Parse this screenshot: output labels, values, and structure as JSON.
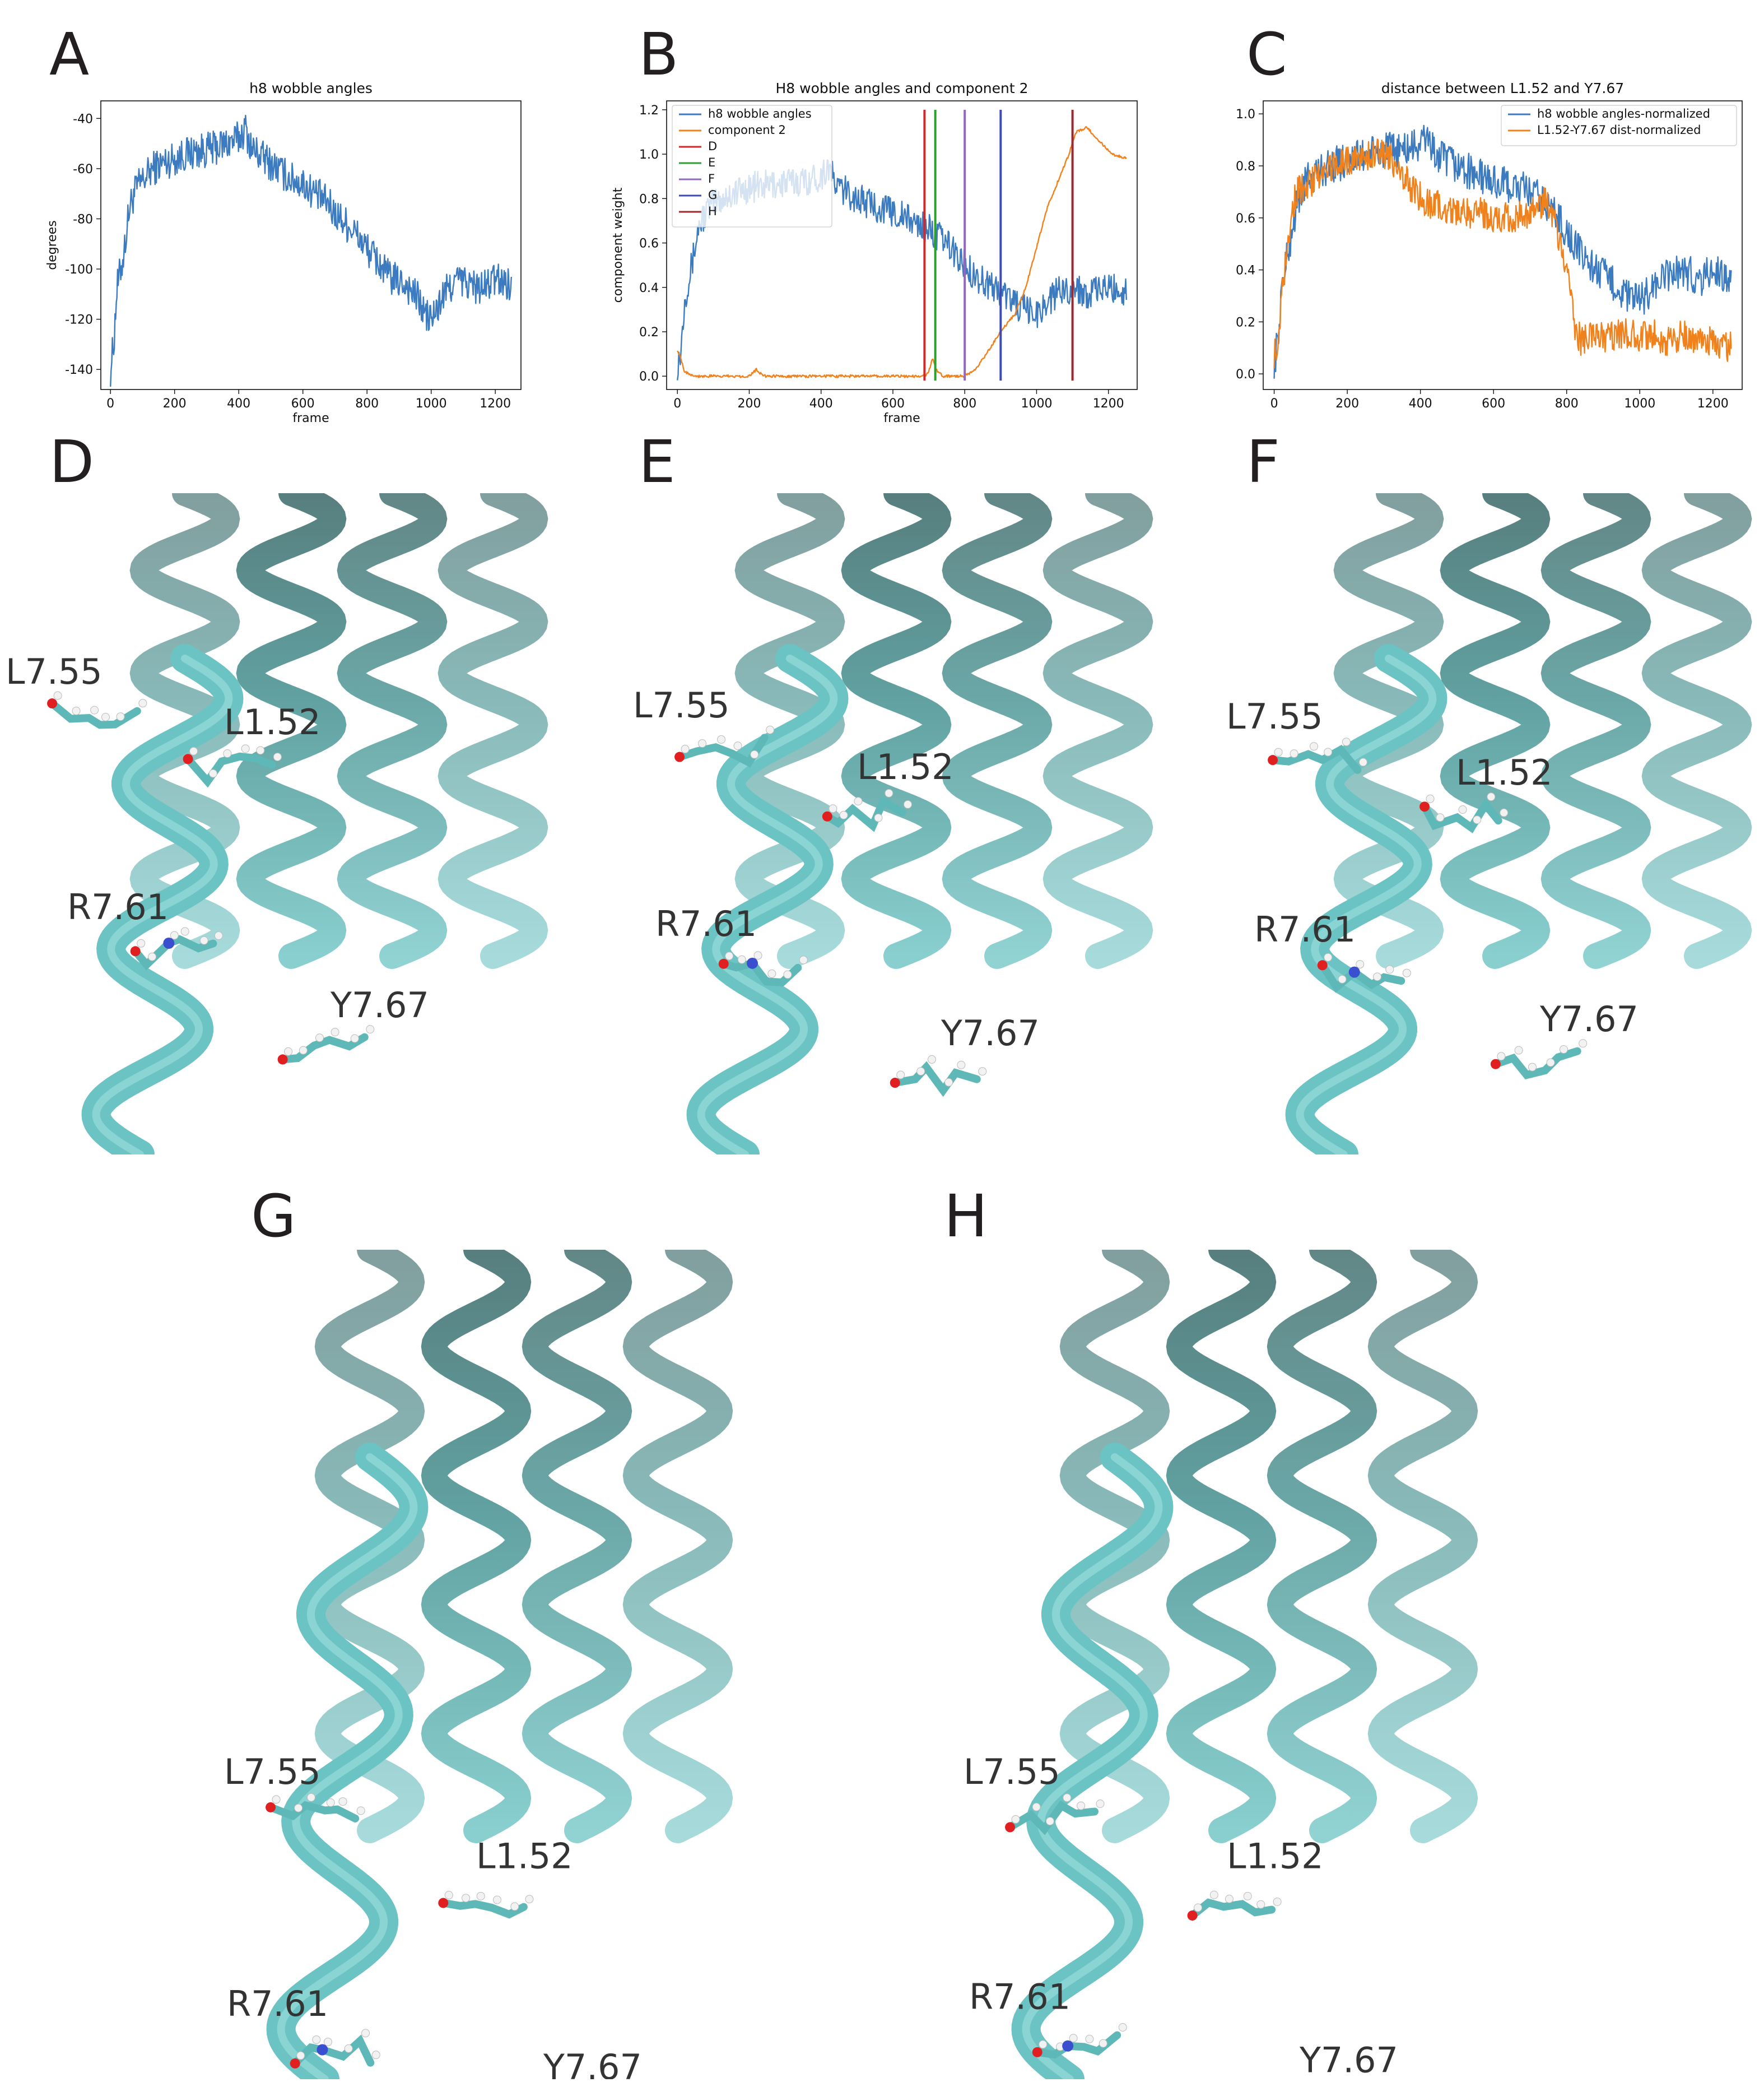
{
  "panel_labels": [
    "A",
    "B",
    "C",
    "D",
    "E",
    "F",
    "G",
    "H"
  ],
  "chart_data": [
    {
      "type": "line",
      "title": "h8 wobble angles",
      "xlabel": "frame",
      "ylabel": "degrees",
      "xlim": [
        -30,
        1280
      ],
      "ylim": [
        -148,
        -33
      ],
      "xticks": [
        0,
        200,
        400,
        600,
        800,
        1000,
        1200
      ],
      "yticks": [
        -140,
        -120,
        -100,
        -80,
        -60,
        -40
      ],
      "grid": false,
      "series": [
        {
          "values": [
            [
              0,
              -140
            ],
            [
              10,
              -130
            ],
            [
              20,
              -108
            ],
            [
              40,
              -95
            ],
            [
              60,
              -75
            ],
            [
              80,
              -68
            ],
            [
              100,
              -65
            ],
            [
              130,
              -60
            ],
            [
              160,
              -58
            ],
            [
              200,
              -56
            ],
            [
              240,
              -54
            ],
            [
              280,
              -53
            ],
            [
              320,
              -52
            ],
            [
              360,
              -50
            ],
            [
              400,
              -48
            ],
            [
              420,
              -44
            ],
            [
              440,
              -52
            ],
            [
              480,
              -56
            ],
            [
              520,
              -60
            ],
            [
              560,
              -64
            ],
            [
              600,
              -66
            ],
            [
              640,
              -70
            ],
            [
              680,
              -74
            ],
            [
              700,
              -78
            ],
            [
              720,
              -80
            ],
            [
              760,
              -85
            ],
            [
              800,
              -92
            ],
            [
              840,
              -98
            ],
            [
              860,
              -102
            ],
            [
              880,
              -104
            ],
            [
              920,
              -106
            ],
            [
              960,
              -112
            ],
            [
              980,
              -118
            ],
            [
              1000,
              -120
            ],
            [
              1020,
              -116
            ],
            [
              1040,
              -110
            ],
            [
              1080,
              -104
            ],
            [
              1120,
              -106
            ],
            [
              1160,
              -108
            ],
            [
              1200,
              -104
            ],
            [
              1250,
              -106
            ]
          ],
          "color": "#3c7bbf"
        }
      ]
    },
    {
      "type": "line",
      "title": "H8 wobble angles and component 2",
      "xlabel": "frame",
      "ylabel": "component weight",
      "xlim": [
        -30,
        1280
      ],
      "ylim": [
        -0.06,
        1.24
      ],
      "xticks": [
        0,
        200,
        400,
        600,
        800,
        1000,
        1200
      ],
      "yticks": [
        0.0,
        0.2,
        0.4,
        0.6,
        0.8,
        1.0,
        1.2
      ],
      "legend_position": "top-left",
      "grid": false,
      "series": [
        {
          "name": "h8 wobble angles",
          "color": "#3c7bbf",
          "values": [
            [
              0,
              0.05
            ],
            [
              10,
              0.12
            ],
            [
              20,
              0.35
            ],
            [
              40,
              0.5
            ],
            [
              60,
              0.68
            ],
            [
              80,
              0.74
            ],
            [
              100,
              0.78
            ],
            [
              150,
              0.82
            ],
            [
              200,
              0.85
            ],
            [
              250,
              0.86
            ],
            [
              300,
              0.87
            ],
            [
              350,
              0.88
            ],
            [
              400,
              0.9
            ],
            [
              420,
              0.95
            ],
            [
              440,
              0.86
            ],
            [
              500,
              0.8
            ],
            [
              560,
              0.76
            ],
            [
              600,
              0.74
            ],
            [
              650,
              0.7
            ],
            [
              700,
              0.66
            ],
            [
              720,
              0.64
            ],
            [
              760,
              0.58
            ],
            [
              800,
              0.5
            ],
            [
              840,
              0.44
            ],
            [
              880,
              0.4
            ],
            [
              920,
              0.36
            ],
            [
              960,
              0.3
            ],
            [
              1000,
              0.28
            ],
            [
              1020,
              0.32
            ],
            [
              1060,
              0.38
            ],
            [
              1100,
              0.4
            ],
            [
              1150,
              0.37
            ],
            [
              1200,
              0.4
            ],
            [
              1250,
              0.38
            ]
          ]
        },
        {
          "name": "component 2",
          "color": "#f0821e",
          "values": [
            [
              0,
              0.12
            ],
            [
              10,
              0.08
            ],
            [
              20,
              0.02
            ],
            [
              50,
              0.0
            ],
            [
              200,
              0.0
            ],
            [
              220,
              0.03
            ],
            [
              240,
              0.0
            ],
            [
              500,
              0.0
            ],
            [
              690,
              0.0
            ],
            [
              700,
              0.02
            ],
            [
              710,
              0.08
            ],
            [
              720,
              0.03
            ],
            [
              740,
              0.0
            ],
            [
              800,
              0.0
            ],
            [
              830,
              0.03
            ],
            [
              860,
              0.1
            ],
            [
              900,
              0.2
            ],
            [
              940,
              0.28
            ],
            [
              970,
              0.4
            ],
            [
              1000,
              0.58
            ],
            [
              1030,
              0.76
            ],
            [
              1060,
              0.88
            ],
            [
              1090,
              1.0
            ],
            [
              1110,
              1.1
            ],
            [
              1140,
              1.12
            ],
            [
              1180,
              1.05
            ],
            [
              1210,
              1.0
            ],
            [
              1250,
              0.98
            ]
          ]
        }
      ],
      "vlines": [
        {
          "name": "D",
          "x": 688,
          "color": "#d62728"
        },
        {
          "name": "E",
          "x": 718,
          "color": "#2ca02c"
        },
        {
          "name": "F",
          "x": 800,
          "color": "#9467bd"
        },
        {
          "name": "G",
          "x": 900,
          "color": "#3d4bb5"
        },
        {
          "name": "H",
          "x": 1100,
          "color": "#a0292e"
        }
      ]
    },
    {
      "type": "line",
      "title": "distance between L1.52 and Y7.67",
      "xlabel": "",
      "ylabel": "",
      "xlim": [
        -30,
        1280
      ],
      "ylim": [
        -0.06,
        1.05
      ],
      "xticks": [
        0,
        200,
        400,
        600,
        800,
        1000,
        1200
      ],
      "yticks": [
        0.0,
        0.2,
        0.4,
        0.6,
        0.8,
        1.0
      ],
      "legend_position": "top-right",
      "grid": false,
      "series": [
        {
          "name": "h8 wobble angles-normalized",
          "color": "#3c7bbf",
          "values": [
            [
              0,
              0.05
            ],
            [
              10,
              0.12
            ],
            [
              20,
              0.32
            ],
            [
              40,
              0.48
            ],
            [
              60,
              0.64
            ],
            [
              80,
              0.72
            ],
            [
              100,
              0.76
            ],
            [
              150,
              0.8
            ],
            [
              200,
              0.82
            ],
            [
              250,
              0.84
            ],
            [
              300,
              0.86
            ],
            [
              350,
              0.86
            ],
            [
              400,
              0.88
            ],
            [
              420,
              0.92
            ],
            [
              440,
              0.84
            ],
            [
              500,
              0.8
            ],
            [
              560,
              0.76
            ],
            [
              600,
              0.74
            ],
            [
              650,
              0.72
            ],
            [
              700,
              0.7
            ],
            [
              740,
              0.66
            ],
            [
              780,
              0.6
            ],
            [
              800,
              0.54
            ],
            [
              840,
              0.46
            ],
            [
              880,
              0.4
            ],
            [
              920,
              0.36
            ],
            [
              960,
              0.3
            ],
            [
              1000,
              0.28
            ],
            [
              1040,
              0.34
            ],
            [
              1080,
              0.38
            ],
            [
              1120,
              0.4
            ],
            [
              1160,
              0.36
            ],
            [
              1200,
              0.4
            ],
            [
              1250,
              0.36
            ]
          ]
        },
        {
          "name": "L1.52-Y7.67 dist-normalized",
          "color": "#f0821e",
          "values": [
            [
              0,
              0.08
            ],
            [
              10,
              0.1
            ],
            [
              20,
              0.3
            ],
            [
              40,
              0.55
            ],
            [
              60,
              0.7
            ],
            [
              80,
              0.72
            ],
            [
              120,
              0.76
            ],
            [
              160,
              0.8
            ],
            [
              200,
              0.82
            ],
            [
              250,
              0.84
            ],
            [
              300,
              0.85
            ],
            [
              340,
              0.8
            ],
            [
              380,
              0.7
            ],
            [
              420,
              0.66
            ],
            [
              460,
              0.64
            ],
            [
              500,
              0.62
            ],
            [
              560,
              0.62
            ],
            [
              600,
              0.6
            ],
            [
              660,
              0.6
            ],
            [
              700,
              0.62
            ],
            [
              740,
              0.66
            ],
            [
              760,
              0.62
            ],
            [
              780,
              0.5
            ],
            [
              800,
              0.4
            ],
            [
              820,
              0.2
            ],
            [
              840,
              0.12
            ],
            [
              880,
              0.15
            ],
            [
              920,
              0.14
            ],
            [
              960,
              0.16
            ],
            [
              1000,
              0.14
            ],
            [
              1040,
              0.15
            ],
            [
              1080,
              0.12
            ],
            [
              1120,
              0.15
            ],
            [
              1160,
              0.13
            ],
            [
              1200,
              0.12
            ],
            [
              1250,
              0.1
            ]
          ]
        }
      ]
    }
  ],
  "structures": [
    {
      "panel": "D",
      "labels": [
        "L7.55",
        "L1.52",
        "R7.61",
        "Y7.67"
      ]
    },
    {
      "panel": "E",
      "labels": [
        "L7.55",
        "L1.52",
        "R7.61",
        "Y7.67"
      ]
    },
    {
      "panel": "F",
      "labels": [
        "L7.55",
        "L1.52",
        "R7.61",
        "Y7.67"
      ]
    },
    {
      "panel": "G",
      "labels": [
        "L7.55",
        "L1.52",
        "R7.61",
        "Y7.67"
      ]
    },
    {
      "panel": "H",
      "labels": [
        "L7.55",
        "L1.52",
        "R7.61",
        "Y7.67"
      ]
    }
  ],
  "colors": {
    "helix_dark": "#2e5e5e",
    "helix_mid": "#3a8a8a",
    "helix_light": "#6cc3c3",
    "oxygen": "#e02020",
    "nitrogen": "#3a4fd0",
    "hydrogen": "#f2f2f2"
  }
}
